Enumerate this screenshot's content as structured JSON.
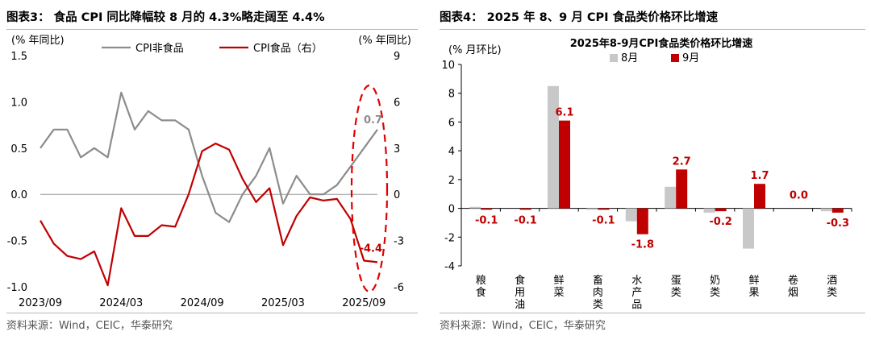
{
  "left": {
    "title": "图表3：  食品 CPI 同比降幅较 8 月的 4.3%略走阔至 4.4%",
    "source": "资料来源：Wind，CEIC，华泰研究",
    "chart_data": {
      "type": "line",
      "left_axis_label": "(% 年同比)",
      "right_axis_label": "(% 年同比)",
      "left_ylim": [
        -1.0,
        1.5
      ],
      "right_ylim": [
        -6,
        9
      ],
      "left_ticks": [
        "1.5",
        "1.0",
        "0.5",
        "0.0",
        "-0.5",
        "-1.0"
      ],
      "right_ticks": [
        "9",
        "6",
        "3",
        "0",
        "-3",
        "-6"
      ],
      "x_tick_labels": [
        "2023/09",
        "2024/03",
        "2024/09",
        "2025/03",
        "2025/09"
      ],
      "x_tick_index": [
        0,
        6,
        12,
        18,
        24
      ],
      "months": [
        "2023/08",
        "2023/09",
        "2023/10",
        "2023/11",
        "2023/12",
        "2024/01",
        "2024/02",
        "2024/03",
        "2024/04",
        "2024/05",
        "2024/06",
        "2024/07",
        "2024/08",
        "2024/09",
        "2024/10",
        "2024/11",
        "2024/12",
        "2025/01",
        "2025/02",
        "2025/03",
        "2025/04",
        "2025/05",
        "2025/06",
        "2025/07",
        "2025/08",
        "2025/09"
      ],
      "series": [
        {
          "name": "CPI非食品",
          "axis": "left",
          "color": "#8c8c8c",
          "values": [
            0.5,
            0.7,
            0.7,
            0.4,
            0.5,
            0.4,
            1.1,
            0.7,
            0.9,
            0.8,
            0.8,
            0.7,
            0.2,
            -0.2,
            -0.3,
            0.0,
            0.2,
            0.5,
            -0.1,
            0.2,
            0.0,
            0.0,
            0.1,
            0.3,
            0.5,
            0.7
          ]
        },
        {
          "name": "CPI食品（右）",
          "axis": "right",
          "color": "#c00000",
          "values": [
            -1.7,
            -3.2,
            -4.0,
            -4.2,
            -3.7,
            -5.9,
            -0.9,
            -2.7,
            -2.7,
            -2.0,
            -2.1,
            0.0,
            2.8,
            3.3,
            2.9,
            1.0,
            -0.5,
            0.4,
            -3.3,
            -1.4,
            -0.2,
            -0.4,
            -0.3,
            -1.6,
            -4.3,
            -4.4
          ]
        }
      ],
      "annotations": [
        {
          "text": "0.7",
          "series": 0,
          "index": 25,
          "color": "#8c8c8c"
        },
        {
          "text": "-4.4",
          "series": 1,
          "index": 25,
          "color": "#c00000"
        }
      ],
      "highlight": "dashed red ellipse around latest points"
    }
  },
  "right": {
    "title": "图表4：  2025 年 8、9 月 CPI 食品类价格环比增速",
    "source": "资料来源：Wind，CEIC，华泰研究",
    "chart_data": {
      "type": "bar",
      "title": "2025年8-9月CPI食品类价格环比增速",
      "ylabel": "(% 月环比)",
      "ylim": [
        -4,
        10
      ],
      "y_ticks": [
        "10",
        "8",
        "6",
        "4",
        "2",
        "0",
        "-2",
        "-4"
      ],
      "categories": [
        "粮食",
        "食用油",
        "鲜菜",
        "畜肉类",
        "水产品",
        "蛋类",
        "奶类",
        "鲜果",
        "卷烟",
        "酒类"
      ],
      "series": [
        {
          "name": "8月",
          "color": "#c8c8c8",
          "values": [
            0.1,
            0.0,
            8.5,
            -0.1,
            -0.9,
            1.5,
            -0.3,
            -2.8,
            0.0,
            -0.2
          ]
        },
        {
          "name": "9月",
          "color": "#c00000",
          "values": [
            -0.1,
            -0.1,
            6.1,
            -0.1,
            -1.8,
            2.7,
            -0.2,
            1.7,
            0.0,
            -0.3
          ]
        }
      ],
      "data_labels": [
        "-0.1",
        "-0.1",
        "6.1",
        "-0.1",
        "-1.8",
        "2.7",
        "-0.2",
        "1.7",
        "0.0",
        "-0.3"
      ]
    }
  }
}
